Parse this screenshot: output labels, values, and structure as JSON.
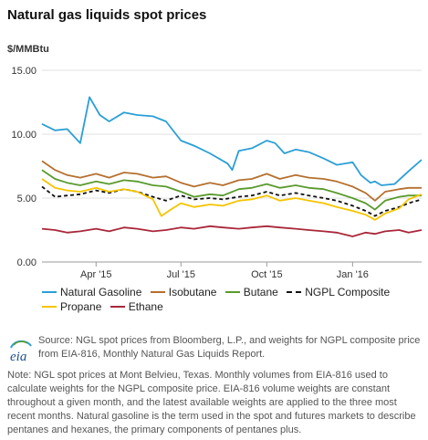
{
  "header": {
    "title": "Natural gas liquids spot prices",
    "unit": "$/MMBtu"
  },
  "chart_data": {
    "type": "line",
    "title": "Natural gas liquids spot prices",
    "ylabel": "$/MMBtu",
    "ylim": [
      0,
      15
    ],
    "yticks": [
      "0.00",
      "5.00",
      "10.00",
      "15.00"
    ],
    "xlim": [
      "2015-02-02",
      "2016-03-15"
    ],
    "xticks": [
      {
        "date": "2015-04-01",
        "label": "Apr '15"
      },
      {
        "date": "2015-07-01",
        "label": "Jul '15"
      },
      {
        "date": "2015-10-01",
        "label": "Oct '15"
      },
      {
        "date": "2016-01-01",
        "label": "Jan '16"
      }
    ],
    "grid": true,
    "legend_position": "bottom",
    "series": [
      {
        "name": "Natural Gasoline",
        "color": "#2a9fd6",
        "dash": false,
        "x": [
          "2015-02-02",
          "2015-02-16",
          "2015-03-01",
          "2015-03-15",
          "2015-03-25",
          "2015-04-05",
          "2015-04-15",
          "2015-05-01",
          "2015-05-15",
          "2015-06-01",
          "2015-06-15",
          "2015-07-01",
          "2015-07-15",
          "2015-08-01",
          "2015-08-20",
          "2015-08-25",
          "2015-09-01",
          "2015-09-15",
          "2015-10-01",
          "2015-10-10",
          "2015-10-20",
          "2015-11-01",
          "2015-11-15",
          "2015-12-01",
          "2015-12-15",
          "2016-01-01",
          "2016-01-10",
          "2016-01-20",
          "2016-01-25",
          "2016-02-01",
          "2016-02-15",
          "2016-03-01",
          "2016-03-15"
        ],
        "y": [
          10.8,
          10.3,
          10.4,
          9.3,
          12.9,
          11.5,
          11.0,
          11.7,
          11.5,
          11.4,
          11.0,
          9.5,
          9.1,
          8.5,
          7.7,
          7.2,
          8.7,
          8.9,
          9.5,
          9.3,
          8.5,
          8.8,
          8.6,
          8.1,
          7.6,
          7.8,
          6.8,
          6.2,
          6.3,
          6.0,
          6.1,
          7.1,
          8.0
        ]
      },
      {
        "name": "Isobutane",
        "color": "#b5702f",
        "dash": false,
        "x": [
          "2015-02-02",
          "2015-02-16",
          "2015-03-01",
          "2015-03-15",
          "2015-04-01",
          "2015-04-15",
          "2015-05-01",
          "2015-05-15",
          "2015-06-01",
          "2015-06-15",
          "2015-07-01",
          "2015-07-15",
          "2015-08-01",
          "2015-08-15",
          "2015-09-01",
          "2015-09-15",
          "2015-10-01",
          "2015-10-15",
          "2015-11-01",
          "2015-11-15",
          "2015-12-01",
          "2015-12-15",
          "2016-01-01",
          "2016-01-15",
          "2016-01-25",
          "2016-02-05",
          "2016-02-20",
          "2016-03-01",
          "2016-03-15"
        ],
        "y": [
          7.9,
          7.2,
          6.8,
          6.6,
          6.9,
          6.6,
          7.0,
          6.9,
          6.6,
          6.7,
          6.2,
          5.9,
          6.2,
          6.0,
          6.4,
          6.5,
          6.9,
          6.5,
          6.8,
          6.6,
          6.5,
          6.3,
          5.9,
          5.4,
          4.8,
          5.5,
          5.7,
          5.8,
          5.8
        ]
      },
      {
        "name": "Butane",
        "color": "#5a9b2d",
        "dash": false,
        "x": [
          "2015-02-02",
          "2015-02-16",
          "2015-03-01",
          "2015-03-15",
          "2015-04-01",
          "2015-04-15",
          "2015-05-01",
          "2015-05-15",
          "2015-06-01",
          "2015-06-15",
          "2015-07-01",
          "2015-07-15",
          "2015-08-01",
          "2015-08-15",
          "2015-09-01",
          "2015-09-15",
          "2015-10-01",
          "2015-10-15",
          "2015-11-01",
          "2015-11-15",
          "2015-12-01",
          "2015-12-15",
          "2016-01-01",
          "2016-01-15",
          "2016-01-25",
          "2016-02-05",
          "2016-02-20",
          "2016-03-01",
          "2016-03-15"
        ],
        "y": [
          7.2,
          6.5,
          6.2,
          6.0,
          6.3,
          6.1,
          6.4,
          6.3,
          6.0,
          5.9,
          5.5,
          5.1,
          5.3,
          5.2,
          5.7,
          5.8,
          6.1,
          5.8,
          6.0,
          5.8,
          5.7,
          5.4,
          5.0,
          4.6,
          4.1,
          4.8,
          5.1,
          5.2,
          5.2
        ]
      },
      {
        "name": "NGPL Composite",
        "color": "#111111",
        "dash": true,
        "x": [
          "2015-02-02",
          "2015-02-16",
          "2015-03-01",
          "2015-03-15",
          "2015-04-01",
          "2015-04-15",
          "2015-05-01",
          "2015-05-15",
          "2015-06-01",
          "2015-06-15",
          "2015-07-01",
          "2015-07-15",
          "2015-08-01",
          "2015-08-15",
          "2015-09-01",
          "2015-09-15",
          "2015-10-01",
          "2015-10-15",
          "2015-11-01",
          "2015-11-15",
          "2015-12-01",
          "2015-12-15",
          "2016-01-01",
          "2016-01-15",
          "2016-01-25",
          "2016-02-05",
          "2016-02-20",
          "2016-03-01",
          "2016-03-15"
        ],
        "y": [
          5.9,
          5.1,
          5.2,
          5.3,
          5.6,
          5.4,
          5.7,
          5.5,
          5.1,
          4.8,
          5.2,
          4.9,
          5.0,
          4.9,
          5.1,
          5.2,
          5.5,
          5.2,
          5.4,
          5.2,
          5.0,
          4.8,
          4.4,
          4.0,
          3.6,
          4.0,
          4.3,
          4.6,
          4.9
        ]
      },
      {
        "name": "Propane",
        "color": "#f5c400",
        "dash": false,
        "x": [
          "2015-02-02",
          "2015-02-16",
          "2015-03-01",
          "2015-03-15",
          "2015-04-01",
          "2015-04-15",
          "2015-05-01",
          "2015-05-15",
          "2015-06-01",
          "2015-06-10",
          "2015-06-20",
          "2015-07-01",
          "2015-07-15",
          "2015-08-01",
          "2015-08-15",
          "2015-09-01",
          "2015-09-15",
          "2015-10-01",
          "2015-10-15",
          "2015-11-01",
          "2015-11-15",
          "2015-12-01",
          "2015-12-15",
          "2016-01-01",
          "2016-01-15",
          "2016-01-25",
          "2016-02-05",
          "2016-02-20",
          "2016-03-01",
          "2016-03-15"
        ],
        "y": [
          6.5,
          5.8,
          5.6,
          5.5,
          5.8,
          5.5,
          5.7,
          5.5,
          4.9,
          3.6,
          4.1,
          4.6,
          4.3,
          4.5,
          4.4,
          4.8,
          4.9,
          5.2,
          4.8,
          5.0,
          4.8,
          4.6,
          4.3,
          4.0,
          3.7,
          3.3,
          3.8,
          4.2,
          4.9,
          5.3
        ]
      },
      {
        "name": "Ethane",
        "color": "#a9283a",
        "dash": false,
        "x": [
          "2015-02-02",
          "2015-02-16",
          "2015-03-01",
          "2015-03-15",
          "2015-04-01",
          "2015-04-15",
          "2015-05-01",
          "2015-05-15",
          "2015-06-01",
          "2015-06-15",
          "2015-07-01",
          "2015-07-15",
          "2015-08-01",
          "2015-08-15",
          "2015-09-01",
          "2015-09-15",
          "2015-10-01",
          "2015-10-15",
          "2015-11-01",
          "2015-11-15",
          "2015-12-01",
          "2015-12-15",
          "2016-01-01",
          "2016-01-15",
          "2016-01-25",
          "2016-02-05",
          "2016-02-20",
          "2016-03-01",
          "2016-03-15"
        ],
        "y": [
          2.6,
          2.5,
          2.3,
          2.4,
          2.6,
          2.4,
          2.7,
          2.6,
          2.4,
          2.5,
          2.7,
          2.6,
          2.8,
          2.7,
          2.6,
          2.7,
          2.8,
          2.7,
          2.6,
          2.5,
          2.4,
          2.3,
          2.0,
          2.3,
          2.2,
          2.4,
          2.5,
          2.3,
          2.5
        ]
      }
    ]
  },
  "footer": {
    "logo_text": "eia",
    "source": "Source: NGL spot prices from Bloomberg, L.P., and weights for NGPL composite price from EIA-816, Monthly Natural Gas Liquids Report.",
    "note": "Note: NGL spot prices at Mont Belvieu, Texas. Monthly volumes from EIA-816 used to calculate weights for the NGPL composite price. EIA-816 volume weights are constant throughout a given month, and the latest available weights are applied to the three most recent months. Natural gasoline is the term used in the spot and futures markets to describe pentanes and hexanes, the primary components of pentanes plus."
  }
}
